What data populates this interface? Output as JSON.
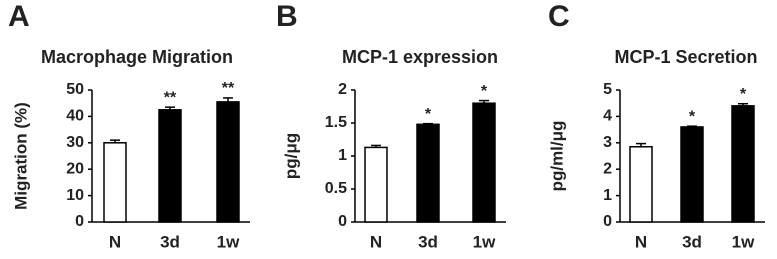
{
  "chart_data": [
    {
      "type": "bar",
      "panel": "A",
      "title": "Macrophage Migration",
      "y_label": "Migration (%)",
      "categories": [
        "N",
        "3d",
        "1w"
      ],
      "values": [
        30,
        42.5,
        45.5
      ],
      "errors": [
        1,
        1,
        1.5
      ],
      "annotations": [
        null,
        "**",
        "**"
      ],
      "colors": [
        "#ffffff",
        "#000000",
        "#000000"
      ],
      "ylim": [
        0,
        50
      ],
      "yticks": [
        0,
        10,
        20,
        30,
        40,
        50
      ]
    },
    {
      "type": "bar",
      "panel": "B",
      "title": "MCP-1 expression",
      "y_label": "pg/μg",
      "categories": [
        "N",
        "3d",
        "1w"
      ],
      "values": [
        1.13,
        1.48,
        1.8
      ],
      "errors": [
        0.03,
        0.01,
        0.04
      ],
      "annotations": [
        null,
        "*",
        "*"
      ],
      "colors": [
        "#ffffff",
        "#000000",
        "#000000"
      ],
      "ylim": [
        0,
        2
      ],
      "yticks": [
        0,
        0.5,
        1,
        1.5,
        2
      ]
    },
    {
      "type": "bar",
      "panel": "C",
      "title": "MCP-1 Secretion",
      "y_label": "pg/ml/μg",
      "categories": [
        "N",
        "3d",
        "1w"
      ],
      "values": [
        2.85,
        3.6,
        4.4
      ],
      "errors": [
        0.12,
        0.03,
        0.08
      ],
      "annotations": [
        null,
        "*",
        "*"
      ],
      "colors": [
        "#ffffff",
        "#000000",
        "#000000"
      ],
      "ylim": [
        0,
        5
      ],
      "yticks": [
        0,
        1,
        2,
        3,
        4,
        5
      ]
    }
  ]
}
